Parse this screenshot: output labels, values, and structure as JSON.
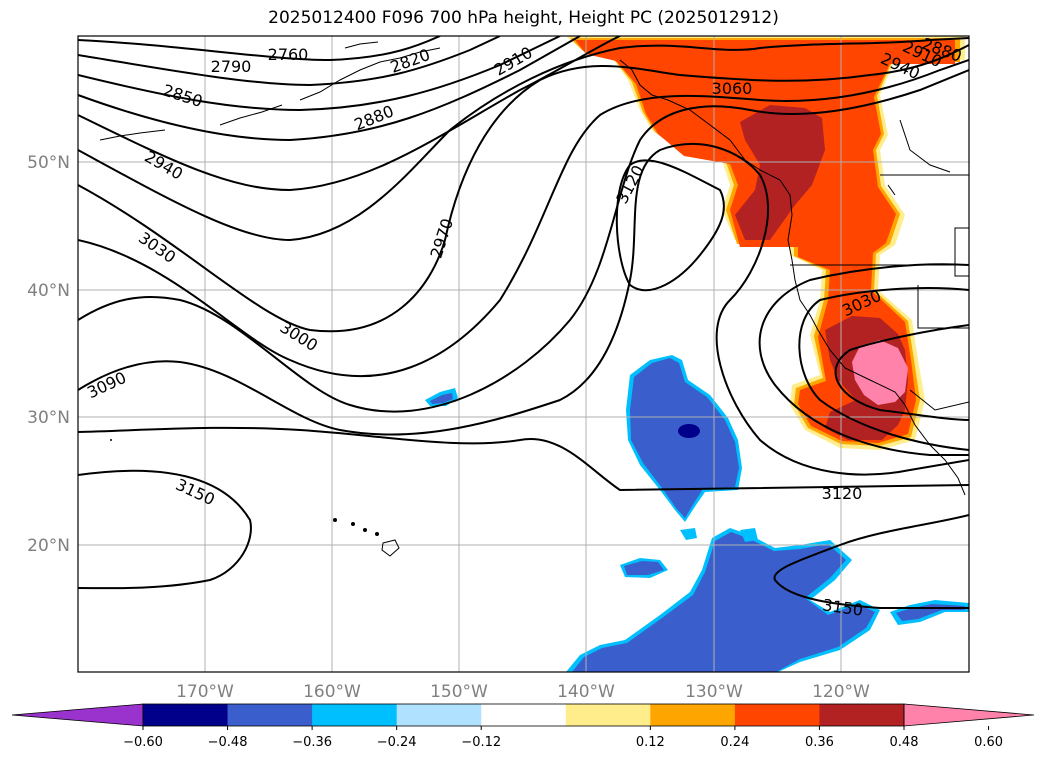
{
  "title": "2025012400 F096 700 hPa height, Height PC (2025012912)",
  "map": {
    "lat_labels": [
      "50°N",
      "40°N",
      "30°N",
      "20°N"
    ],
    "lon_labels": [
      "170°W",
      "160°W",
      "150°W",
      "140°W",
      "130°W",
      "120°W"
    ],
    "contour_labels": [
      "2760",
      "2790",
      "2820",
      "2850",
      "2880",
      "2910",
      "2940",
      "3030",
      "3000",
      "3090",
      "3150",
      "2970",
      "3060",
      "3120",
      "3030",
      "3120",
      "3150",
      "2940",
      "2910",
      "2880"
    ]
  },
  "colorbar": {
    "ticks": [
      "−0.60",
      "−0.48",
      "−0.36",
      "−0.24",
      "−0.12",
      "0.12",
      "0.24",
      "0.36",
      "0.48",
      "0.60"
    ],
    "colors": [
      "#9a32cd",
      "#00008b",
      "#3a5fcd",
      "#00bfff",
      "#b0e2ff",
      "#ffffff",
      "#ffec8b",
      "#ffa500",
      "#ff4500",
      "#b22222",
      "#ff82ab"
    ]
  }
}
